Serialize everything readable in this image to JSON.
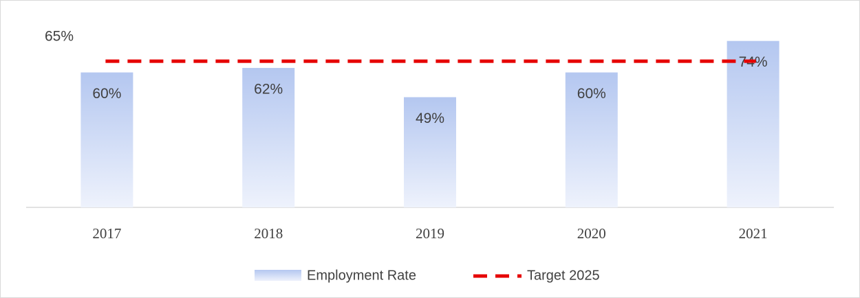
{
  "chart_data": {
    "type": "bar",
    "categories": [
      "2017",
      "2018",
      "2019",
      "2020",
      "2021"
    ],
    "series": [
      {
        "name": "Employment Rate",
        "color": "#b4c7f0",
        "values": [
          60,
          62,
          49,
          60,
          74
        ],
        "value_labels": [
          "60%",
          "62%",
          "49%",
          "60%",
          "74%"
        ]
      }
    ],
    "target": {
      "name": "Target 2025",
      "color": "#e60000",
      "value": 65,
      "value_label": "65%"
    },
    "ylim": [
      0,
      80
    ]
  }
}
